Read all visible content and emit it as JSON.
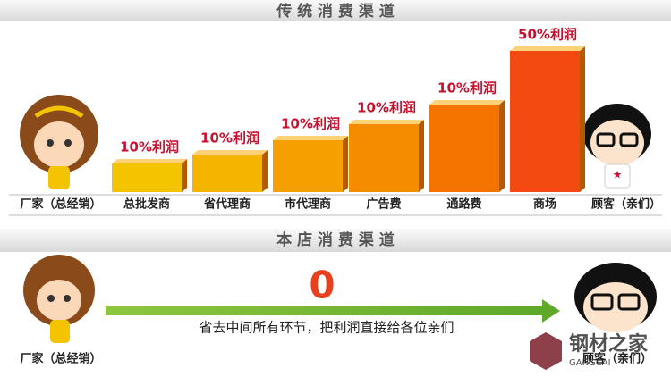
{
  "traditional": {
    "title": "传 统 消 费 渠 道",
    "maker": "厂家（总经销）",
    "stages": [
      {
        "label": "总批发商",
        "profit": "10%利润"
      },
      {
        "label": "省代理商",
        "profit": "10%利润"
      },
      {
        "label": "市代理商",
        "profit": "10%利润"
      },
      {
        "label": "广告费",
        "profit": "10%利润"
      },
      {
        "label": "通路费",
        "profit": "10%利润"
      },
      {
        "label": "商场",
        "profit": "50%利润"
      }
    ],
    "customer": "顾客（亲们）"
  },
  "store": {
    "title": "本 店 消 费 渠 道",
    "middle": "0",
    "caption": "省去中间所有环节，把利润直接给各位亲们",
    "maker": "厂家（总经销）",
    "customer": "顾客（亲们）"
  },
  "watermark": {
    "name": "钢材之家",
    "sub": "GANGCAI"
  }
}
